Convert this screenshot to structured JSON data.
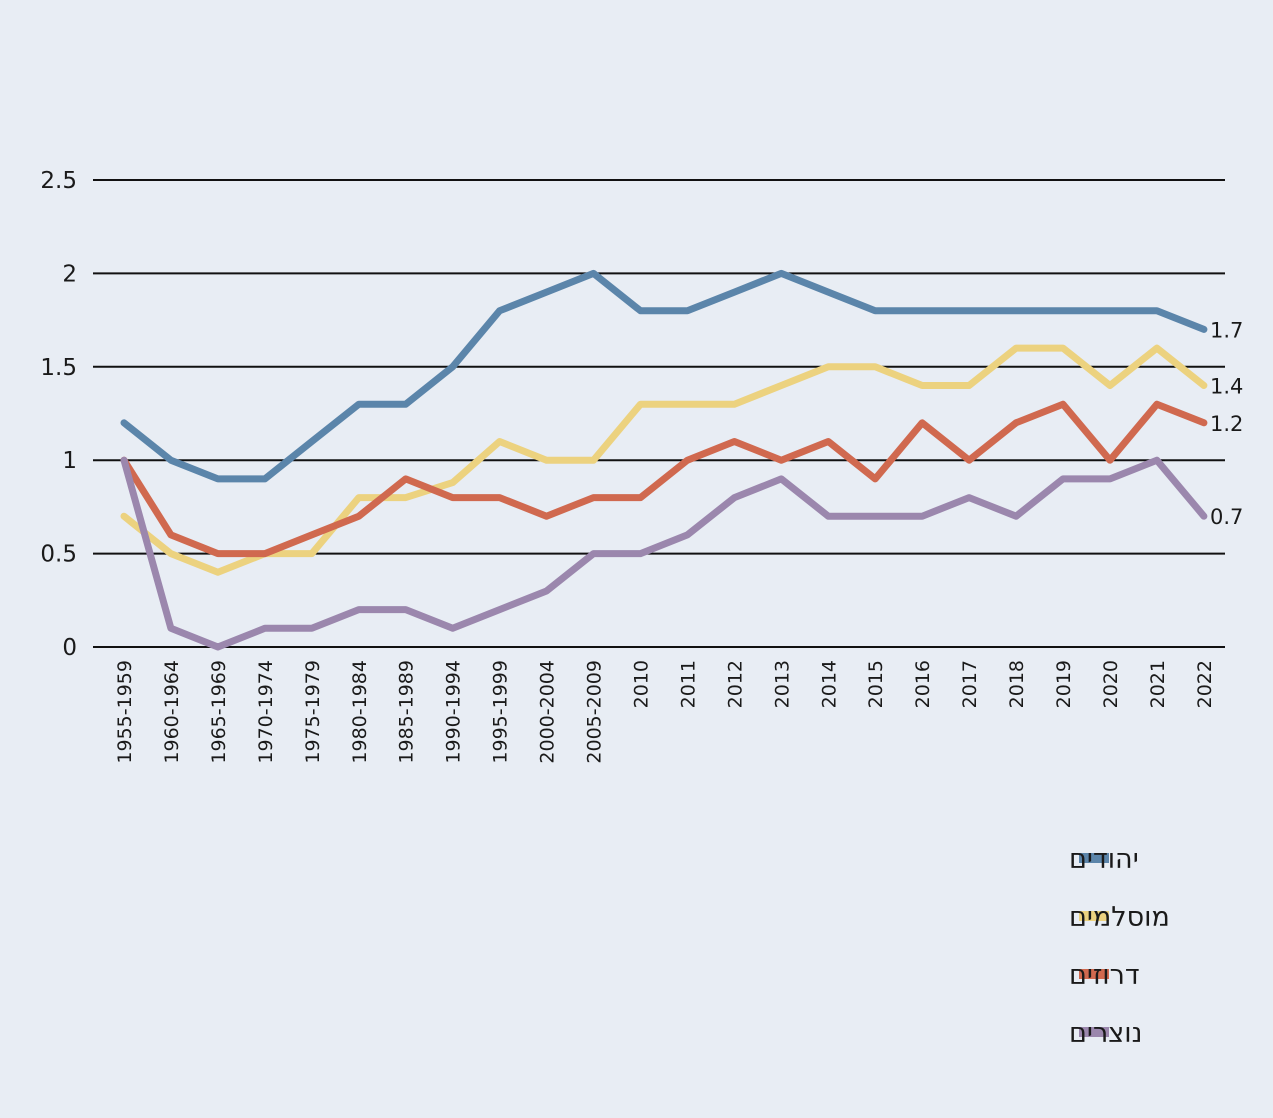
{
  "chart_data": {
    "type": "line",
    "title": "",
    "xlabel": "",
    "ylabel": "",
    "ylim": [
      0,
      2.5
    ],
    "yticks": [
      0,
      0.5,
      1,
      1.5,
      2,
      2.5
    ],
    "ytick_labels": [
      "0",
      "0.5",
      "1",
      "1.5",
      "2",
      "2.5"
    ],
    "grid": true,
    "legend_position": "bottom-right",
    "categories": [
      "1955-1959",
      "1960-1964",
      "1965-1969",
      "1970-1974",
      "1975-1979",
      "1980-1984",
      "1985-1989",
      "1990-1994",
      "1995-1999",
      "2000-2004",
      "2005-2009",
      "2010",
      "2011",
      "2012",
      "2013",
      "2014",
      "2015",
      "2016",
      "2017",
      "2018",
      "2019",
      "2020",
      "2021",
      "2022"
    ],
    "series": [
      {
        "name": "יהודים",
        "color": "#5b85aa",
        "values": [
          1.2,
          1.0,
          0.9,
          0.9,
          1.1,
          1.3,
          1.3,
          1.5,
          1.8,
          1.9,
          2.0,
          1.8,
          1.8,
          1.9,
          2.0,
          1.9,
          1.8,
          1.8,
          1.8,
          1.8,
          1.8,
          1.8,
          1.8,
          1.7
        ],
        "end_label": "1.7"
      },
      {
        "name": "מוסלמים",
        "color": "#ecd27f",
        "values": [
          0.7,
          0.5,
          0.4,
          0.5,
          0.5,
          0.8,
          0.8,
          0.88,
          1.1,
          1.0,
          1.0,
          1.3,
          1.3,
          1.3,
          1.4,
          1.5,
          1.5,
          1.4,
          1.4,
          1.6,
          1.6,
          1.4,
          1.6,
          1.4
        ],
        "end_label": "1.4"
      },
      {
        "name": "דרוזים",
        "color": "#d0694f",
        "values": [
          1.0,
          0.6,
          0.5,
          0.5,
          0.6,
          0.7,
          0.9,
          0.8,
          0.8,
          0.7,
          0.8,
          0.8,
          1.0,
          1.1,
          1.0,
          1.1,
          0.9,
          1.2,
          1.0,
          1.2,
          1.3,
          1.0,
          1.3,
          1.2
        ],
        "end_label": "1.2"
      },
      {
        "name": "נוצרים",
        "color": "#9b87ad",
        "values": [
          1.0,
          0.1,
          0.0,
          0.1,
          0.1,
          0.2,
          0.2,
          0.1,
          0.2,
          0.3,
          0.5,
          0.5,
          0.6,
          0.8,
          0.9,
          0.7,
          0.7,
          0.7,
          0.8,
          0.7,
          0.9,
          0.9,
          1.0,
          0.7
        ],
        "end_label": "0.7"
      }
    ]
  }
}
